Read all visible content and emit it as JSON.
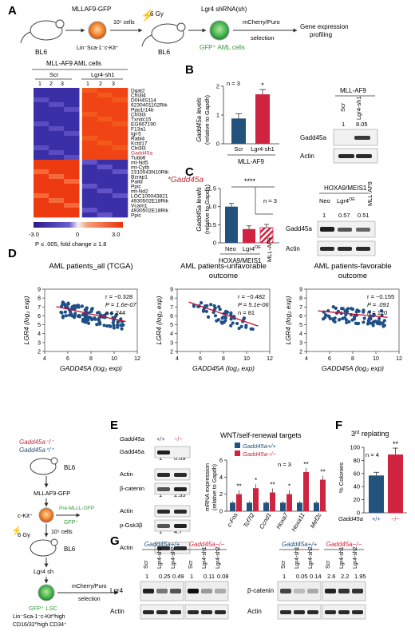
{
  "panels": [
    "A",
    "B",
    "C",
    "D",
    "E",
    "F",
    "G"
  ],
  "colors": {
    "scr": "#23527c",
    "ko": "#d0233f",
    "green": "#2e9b3a",
    "red_text": "#c22a3a",
    "heat_low": "#3a2fa6",
    "heat_high": "#f03c0f"
  },
  "workflowA": {
    "mouse1": "BL6",
    "donor_label": "MLLAF9-GFP",
    "lsk_label": "Lin⁻Sca-1⁻c-Kit⁺",
    "cells": "10⁵ cells",
    "irradiation": "6 Gy",
    "mouse2": "BL6",
    "shrna": "Lgr4 shRNA(sh)",
    "gfp_aml": "GFP⁺ AML cells",
    "selection_1": "mCherry/Puro",
    "selection_2": "selection",
    "profiling_1": "Gene expression",
    "profiling_2": "profiling"
  },
  "heatmap": {
    "title": "MLL-AF9 AML cells",
    "group1": "Scr",
    "group2": "Lgr4-sh1",
    "reps": [
      "1",
      "2",
      "3",
      "1",
      "2",
      "3"
    ],
    "genes": [
      "Dgat2",
      "Chi3l4",
      "D0H4S114",
      "6230401102Rik",
      "Ppp1r14b",
      "Chi3l3",
      "Txndc15",
      "EG667190",
      "F13a1",
      "Igl-5",
      "Rabl4",
      "Kctd17",
      "Chi3l3",
      "Gadd45a",
      "Tubb6",
      "mt-Nd5",
      "mt-Cytb",
      "2310043N10Rik",
      "Bzrap1",
      "Palld",
      "Ppic",
      "mt-Nd2",
      "LOC100043821",
      "4930502E18Rik",
      "Vcam1",
      "4930502E18Rik",
      "Ppic"
    ],
    "highlight": "*Gadd45a",
    "legend_ticks": [
      "-3.0",
      "0",
      "3.0"
    ],
    "footnote": "P ≤ .005, fold change ≥ 1.8"
  },
  "panelB": {
    "ylabel_1": "Gadd45a levels",
    "ylabel_2": "(relative to Gapdh)",
    "n": "n = 3",
    "categories": [
      "Scr",
      "Lgr4-sh1"
    ],
    "values": [
      0.88,
      1.72
    ],
    "ylim": [
      0,
      2
    ],
    "ticks": [
      "0",
      "1",
      "2"
    ],
    "sig": "*",
    "xgroup": "MLL-AF9",
    "blot_title": "MLL-AF9",
    "blot_lanes": [
      "Scr",
      "Lgr4-sh1"
    ],
    "blot_quant": [
      "1",
      "8.05"
    ],
    "blot_rows": [
      "Gadd45a",
      "Actin"
    ]
  },
  "panelC": {
    "ylabel_1": "Gadd45a levels",
    "ylabel_2": "(relative to Gapdh)",
    "n": "n = 3",
    "sig": "****",
    "categories": [
      "Neo",
      "Lgr4OE",
      "MLL-AF9"
    ],
    "cat2_base": "Lgr4",
    "cat2_sup": "OE",
    "values": [
      1.0,
      0.38,
      0.42
    ],
    "ylim": [
      0,
      1.5
    ],
    "ticks": [
      "0",
      "0.5",
      "1.0",
      "1.5"
    ],
    "xgroup": "HOXA9/MEIS1",
    "blot_title": "HOXA9/MEIS1",
    "blot_lanes_side": "MLL-AF9",
    "blot_quant": [
      "1",
      "0.57",
      "0.51"
    ],
    "blot_rows": [
      "Gadd45a",
      "Actin"
    ]
  },
  "panelD": [
    {
      "title_1": "AML patients_all (TCGA)",
      "title_2": "",
      "r": "r = −0.328",
      "p": "P = 1.6e-07",
      "n": "n = 244"
    },
    {
      "title_1": "AML patients-unfavorable",
      "title_2": "outcome",
      "r": "r = −0.482",
      "p": "P = 5.1e-06",
      "n": "n = 81"
    },
    {
      "title_1": "AML patients-favorable",
      "title_2": "outcome",
      "r": "r = −0.155",
      "p": "P = .091",
      "n": "n = 120"
    }
  ],
  "panelD_axes": {
    "ylabel": "LGR4 (log₂ exp)",
    "xlabel": "GADD45A (log₂ exp)",
    "xticks": [
      "4",
      "6",
      "8",
      "10",
      "12"
    ],
    "yticks": [
      "2",
      "3",
      "4",
      "5",
      "6",
      "7",
      "8",
      "9"
    ],
    "xlim": [
      4,
      12
    ],
    "ylim": [
      2,
      9
    ]
  },
  "workflowE": {
    "geno1": "Gadd45a⁻/⁻",
    "geno2": "Gadd45a⁺/⁺",
    "mouse1": "BL6",
    "donor": "MLLAF9-GFP",
    "ckit": "c-Kit⁺",
    "premll": "Pre-MLLL-GFP",
    "gfp": "GFP⁺",
    "irradiation": "6 Gy",
    "cells": "10⁵ cells",
    "mouse2": "BL6",
    "lgr4sh": "Lgr4 sh",
    "sel_1": "mCherry/Puro",
    "sel_2": "selection",
    "lsc_1": "GFP⁺ LSC",
    "lsc_2": "Lin⁻Sca-1⁻c-Kit^high",
    "lsc_3": "CD16/32^high CD34⁺"
  },
  "panelE_blot": {
    "genotype_label": "Gadd45a",
    "lanes": [
      "+/+",
      "−/−"
    ],
    "rows": [
      {
        "name": "Gadd45a",
        "quant": [
          "1",
          "0.09"
        ]
      },
      {
        "name": "Actin",
        "quant": []
      },
      {
        "name": "β-catenin",
        "quant": [
          "1",
          "2.35"
        ]
      },
      {
        "name": "Actin",
        "quant": []
      },
      {
        "name": "p-Gsk3β",
        "quant": [
          "1",
          "4.7"
        ]
      },
      {
        "name": "Actin",
        "quant": []
      }
    ]
  },
  "chart_data": [
    {
      "type": "bar",
      "panel": "B",
      "categories": [
        "Scr",
        "Lgr4-sh1"
      ],
      "series": [
        {
          "values": [
            0.88,
            1.72
          ]
        }
      ],
      "ylabel": "Gadd45a levels (relative to Gapdh)",
      "xlabel": "MLL-AF9",
      "ylim": [
        0,
        2
      ]
    },
    {
      "type": "bar",
      "panel": "C",
      "categories": [
        "Neo",
        "Lgr4OE",
        "MLL-AF9"
      ],
      "series": [
        {
          "values": [
            1.0,
            0.38,
            0.42
          ]
        }
      ],
      "ylabel": "Gadd45a levels (relative to Gapdh)",
      "xlabel": "HOXA9/MEIS1",
      "ylim": [
        0,
        1.5
      ]
    },
    {
      "type": "bar",
      "panel": "E",
      "title": "WNT/self-renewal targets",
      "categories": [
        "c-Fos",
        "Tcf7l2",
        "Ccnd1",
        "Hoxa7",
        "Hoxa11",
        "Mef2c"
      ],
      "series": [
        {
          "name": "Gadd45a+/+",
          "values": [
            1.0,
            1.0,
            1.0,
            1.0,
            1.0,
            1.0
          ]
        },
        {
          "name": "Gadd45a−/−",
          "values": [
            2.0,
            2.7,
            2.2,
            2.0,
            4.6,
            3.7
          ]
        }
      ],
      "sig": [
        "**",
        "*",
        "**",
        "*",
        "**",
        "**"
      ],
      "n": "n = 3",
      "ylabel": "mRNA expression (relative to Gapdh)",
      "ylim": [
        0,
        6
      ]
    },
    {
      "type": "bar",
      "panel": "F",
      "title": "3rd replating",
      "categories": [
        "+/+",
        "−/−"
      ],
      "series": [
        {
          "values": [
            57,
            89
          ]
        }
      ],
      "n": "n = 4",
      "sig": "**",
      "xlabel": "Gadd45a",
      "ylabel": "% Colonies",
      "ylim": [
        0,
        100
      ]
    }
  ],
  "panelE_chart": {
    "title": "WNT/self-renewal targets",
    "legend": [
      "Gadd45a+/+",
      "Gadd45a−/−"
    ],
    "yticks": [
      "0",
      "2",
      "4",
      "6"
    ],
    "ylabel_1": "mRNA expression",
    "ylabel_2": "(relative to Gapdh)",
    "n": "n = 3"
  },
  "panelF": {
    "title_base": "3",
    "title_sup": "rd",
    "title_rest": " replating",
    "yticks": [
      "0",
      "20",
      "40",
      "60",
      "80",
      "100"
    ],
    "ylabel": "% Colonies",
    "n": "n = 4",
    "geno_label": "Gadd45a",
    "cats": [
      "+/+",
      "−/−"
    ]
  },
  "panelG": {
    "group_wt": "Gadd45a+/+",
    "group_ko": "Gadd45a−/−",
    "lanes": [
      "Scr",
      "Lgr4-sh1",
      "Lgr4-sh2"
    ],
    "left_quant_wt": [
      "1",
      "0.25",
      "0.49"
    ],
    "left_quant_ko": [
      "1",
      "0.11",
      "0.08"
    ],
    "right_quant_wt": [
      "1",
      "0.05",
      "0.14"
    ],
    "right_quant_ko": [
      "2.6",
      "2.2",
      "1.95"
    ],
    "left_rows": [
      "Lgr4",
      "Actin"
    ],
    "right_rows": [
      "β-catenin",
      "Actin"
    ]
  }
}
